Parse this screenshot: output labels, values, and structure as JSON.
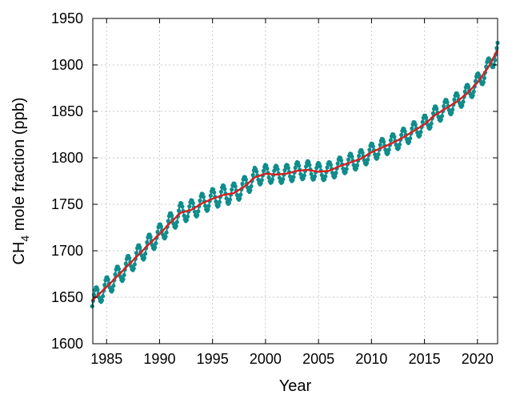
{
  "chart_data": {
    "type": "line",
    "title": "",
    "xlabel": "Year",
    "ylabel": {
      "prefix": "CH",
      "subscript": "4",
      "suffix": " mole fraction (ppb)"
    },
    "xlim": [
      1983.7,
      2021.9
    ],
    "ylim": [
      1600,
      1950
    ],
    "grid": true,
    "legend": "none",
    "xticks": [
      {
        "value": 1985,
        "label": "1985"
      },
      {
        "value": 1990,
        "label": "1990"
      },
      {
        "value": 1995,
        "label": "1995"
      },
      {
        "value": 2000,
        "label": "2000"
      },
      {
        "value": 2005,
        "label": "2005"
      },
      {
        "value": 2010,
        "label": "2010"
      },
      {
        "value": 2015,
        "label": "2015"
      },
      {
        "value": 2020,
        "label": "2020"
      }
    ],
    "yticks": [
      {
        "value": 1600,
        "label": "1600"
      },
      {
        "value": 1650,
        "label": "1650"
      },
      {
        "value": 1700,
        "label": "1700"
      },
      {
        "value": 1750,
        "label": "1750"
      },
      {
        "value": 1800,
        "label": "1800"
      },
      {
        "value": 1850,
        "label": "1850"
      },
      {
        "value": 1900,
        "label": "1900"
      },
      {
        "value": 1950,
        "label": "1950"
      }
    ],
    "colors": {
      "monthly": "#0f8c8c",
      "trend": "#d6201f"
    },
    "series": [
      {
        "id": "monthly",
        "style": "points-with-line",
        "seasonal_amplitude_ppb": 10,
        "peak_month": 12,
        "points_per_year": 12,
        "note": "Monthly global mean values oscillate seasonally about the trend; peak near the start of each year, minimum mid-year."
      },
      {
        "id": "trend",
        "style": "line",
        "x": [
          1983.6,
          1985,
          1987,
          1989,
          1990,
          1991,
          1992,
          1993,
          1994,
          1995,
          1996,
          1997,
          1998,
          1999,
          2000,
          2001,
          2002,
          2003,
          2004,
          2005,
          2006,
          2007,
          2008,
          2009,
          2010,
          2011,
          2012,
          2013,
          2014,
          2015,
          2016,
          2017,
          2018,
          2019,
          2020,
          2021,
          2021.9
        ],
        "y": [
          1646,
          1661,
          1684,
          1707,
          1718,
          1730,
          1741,
          1744,
          1751,
          1756,
          1760,
          1762,
          1769,
          1779,
          1783,
          1782,
          1783,
          1786,
          1787,
          1785,
          1786,
          1791,
          1795,
          1799,
          1806,
          1811,
          1816,
          1822,
          1829,
          1836,
          1846,
          1853,
          1860,
          1869,
          1881,
          1897,
          1916
        ]
      }
    ]
  }
}
